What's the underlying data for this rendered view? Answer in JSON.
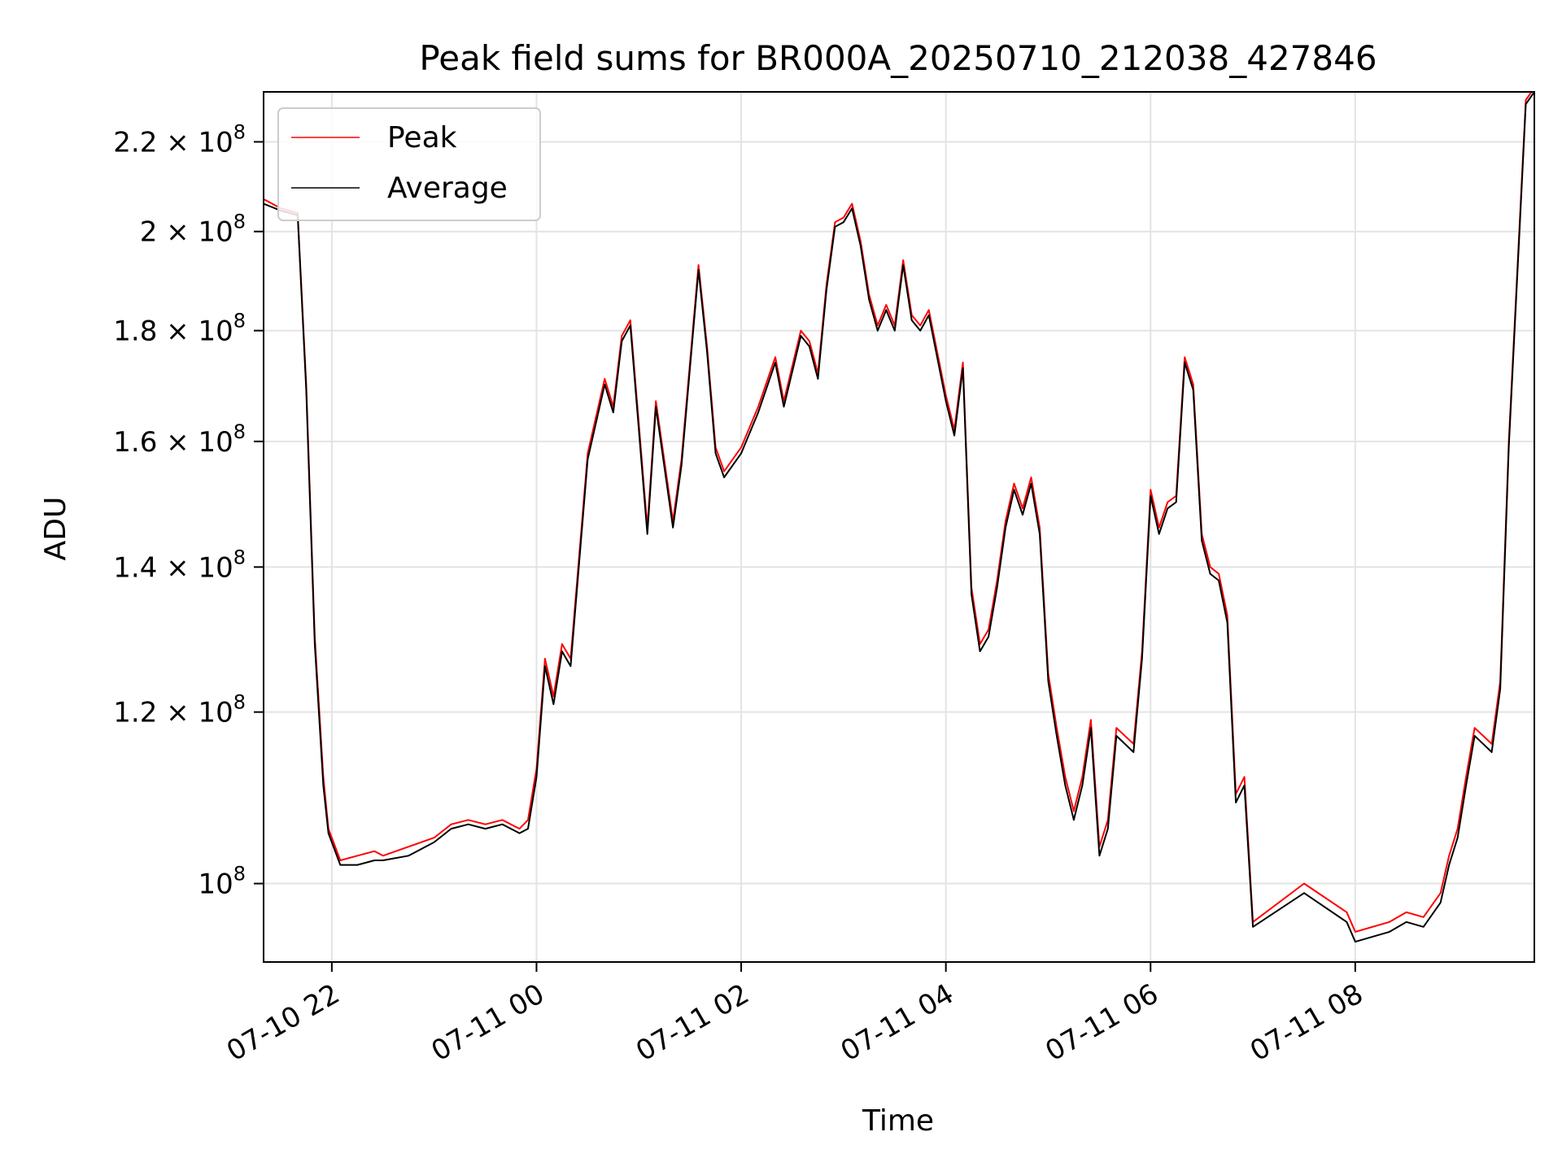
{
  "chart_data": {
    "type": "line",
    "title": "Peak field sums for BR000A_20250710_212038_427846",
    "xlabel": "Time",
    "ylabel": "ADU",
    "yscale": "log",
    "ylim": [
      92000000,
      232000000
    ],
    "xlim": [
      "2025-07-10 21:20",
      "2025-07-11 09:45"
    ],
    "grid": true,
    "legend_position": "upper-left",
    "x_ticks": [
      {
        "value": "2025-07-10 22:00",
        "label": "07-10 22"
      },
      {
        "value": "2025-07-11 00:00",
        "label": "07-11 00"
      },
      {
        "value": "2025-07-11 02:00",
        "label": "07-11 02"
      },
      {
        "value": "2025-07-11 04:00",
        "label": "07-11 04"
      },
      {
        "value": "2025-07-11 06:00",
        "label": "07-11 06"
      },
      {
        "value": "2025-07-11 08:00",
        "label": "07-11 08"
      }
    ],
    "y_ticks": [
      {
        "value": 100000000,
        "mantissa": "",
        "exponent": "8"
      },
      {
        "value": 120000000,
        "mantissa": "1.2",
        "exponent": "8"
      },
      {
        "value": 140000000,
        "mantissa": "1.4",
        "exponent": "8"
      },
      {
        "value": 160000000,
        "mantissa": "1.6",
        "exponent": "8"
      },
      {
        "value": 180000000,
        "mantissa": "1.8",
        "exponent": "8"
      },
      {
        "value": 200000000,
        "mantissa": "2",
        "exponent": "8"
      },
      {
        "value": 220000000,
        "mantissa": "2.2",
        "exponent": "8"
      }
    ],
    "series": [
      {
        "name": "Peak",
        "color": "#ff0000",
        "x": [
          "2025-07-10 21:20",
          "2025-07-10 21:30",
          "2025-07-10 21:35",
          "2025-07-10 21:40",
          "2025-07-10 21:45",
          "2025-07-10 21:50",
          "2025-07-10 21:55",
          "2025-07-10 21:58",
          "2025-07-10 22:05",
          "2025-07-10 22:15",
          "2025-07-10 22:25",
          "2025-07-10 22:30",
          "2025-07-10 22:45",
          "2025-07-10 23:00",
          "2025-07-10 23:10",
          "2025-07-10 23:20",
          "2025-07-10 23:30",
          "2025-07-10 23:40",
          "2025-07-10 23:50",
          "2025-07-10 23:55",
          "2025-07-11 00:00",
          "2025-07-11 00:05",
          "2025-07-11 00:10",
          "2025-07-11 00:15",
          "2025-07-11 00:20",
          "2025-07-11 00:30",
          "2025-07-11 00:40",
          "2025-07-11 00:45",
          "2025-07-11 00:50",
          "2025-07-11 00:55",
          "2025-07-11 01:05",
          "2025-07-11 01:10",
          "2025-07-11 01:20",
          "2025-07-11 01:25",
          "2025-07-11 01:35",
          "2025-07-11 01:40",
          "2025-07-11 01:45",
          "2025-07-11 01:50",
          "2025-07-11 02:00",
          "2025-07-11 02:10",
          "2025-07-11 02:20",
          "2025-07-11 02:25",
          "2025-07-11 02:35",
          "2025-07-11 02:40",
          "2025-07-11 02:45",
          "2025-07-11 02:50",
          "2025-07-11 02:55",
          "2025-07-11 03:00",
          "2025-07-11 03:05",
          "2025-07-11 03:10",
          "2025-07-11 03:15",
          "2025-07-11 03:20",
          "2025-07-11 03:25",
          "2025-07-11 03:30",
          "2025-07-11 03:35",
          "2025-07-11 03:40",
          "2025-07-11 03:45",
          "2025-07-11 03:50",
          "2025-07-11 04:00",
          "2025-07-11 04:05",
          "2025-07-11 04:10",
          "2025-07-11 04:15",
          "2025-07-11 04:20",
          "2025-07-11 04:25",
          "2025-07-11 04:30",
          "2025-07-11 04:35",
          "2025-07-11 04:40",
          "2025-07-11 04:45",
          "2025-07-11 04:50",
          "2025-07-11 04:55",
          "2025-07-11 05:00",
          "2025-07-11 05:05",
          "2025-07-11 05:10",
          "2025-07-11 05:15",
          "2025-07-11 05:20",
          "2025-07-11 05:25",
          "2025-07-11 05:30",
          "2025-07-11 05:35",
          "2025-07-11 05:40",
          "2025-07-11 05:50",
          "2025-07-11 05:55",
          "2025-07-11 06:00",
          "2025-07-11 06:05",
          "2025-07-11 06:10",
          "2025-07-11 06:15",
          "2025-07-11 06:20",
          "2025-07-11 06:25",
          "2025-07-11 06:30",
          "2025-07-11 06:35",
          "2025-07-11 06:40",
          "2025-07-11 06:45",
          "2025-07-11 06:50",
          "2025-07-11 06:55",
          "2025-07-11 07:00",
          "2025-07-11 07:30",
          "2025-07-11 07:55",
          "2025-07-11 08:00",
          "2025-07-11 08:20",
          "2025-07-11 08:30",
          "2025-07-11 08:40",
          "2025-07-11 08:50",
          "2025-07-11 08:55",
          "2025-07-11 09:00",
          "2025-07-11 09:05",
          "2025-07-11 09:10",
          "2025-07-11 09:15",
          "2025-07-11 09:20",
          "2025-07-11 09:25",
          "2025-07-11 09:30",
          "2025-07-11 09:40",
          "2025-07-11 09:45"
        ],
        "y": [
          207000000,
          205000000,
          204500000,
          204000000,
          170000000,
          130000000,
          112000000,
          106000000,
          102500000,
          103000000,
          103500000,
          103000000,
          104000000,
          105000000,
          106500000,
          107000000,
          106500000,
          107000000,
          106000000,
          107000000,
          113000000,
          127000000,
          122000000,
          129000000,
          127000000,
          158000000,
          171000000,
          166000000,
          179000000,
          182000000,
          146000000,
          167000000,
          147000000,
          157000000,
          193000000,
          177000000,
          159000000,
          155000000,
          159000000,
          166000000,
          175000000,
          167000000,
          180000000,
          178000000,
          172000000,
          189000000,
          202000000,
          203000000,
          206000000,
          198000000,
          187000000,
          181000000,
          185000000,
          181000000,
          194000000,
          183000000,
          181000000,
          184000000,
          168000000,
          162000000,
          174000000,
          137000000,
          129000000,
          131000000,
          138000000,
          147000000,
          153000000,
          149000000,
          154000000,
          146000000,
          125000000,
          118000000,
          112000000,
          108000000,
          112000000,
          119000000,
          104000000,
          107000000,
          118000000,
          116000000,
          128000000,
          152000000,
          146000000,
          150000000,
          151000000,
          175000000,
          170000000,
          145000000,
          140000000,
          139000000,
          133000000,
          110000000,
          112000000,
          96000000,
          100000000,
          97000000,
          95000000,
          96000000,
          97000000,
          96500000,
          99000000,
          103000000,
          106000000,
          112000000,
          118000000,
          117000000,
          116000000,
          124000000,
          160000000,
          230000000,
          233000000
        ]
      },
      {
        "name": "Average",
        "color": "#000000",
        "x": [
          "2025-07-10 21:20",
          "2025-07-10 21:30",
          "2025-07-10 21:35",
          "2025-07-10 21:40",
          "2025-07-10 21:45",
          "2025-07-10 21:50",
          "2025-07-10 21:55",
          "2025-07-10 21:58",
          "2025-07-10 22:05",
          "2025-07-10 22:15",
          "2025-07-10 22:25",
          "2025-07-10 22:30",
          "2025-07-10 22:45",
          "2025-07-10 23:00",
          "2025-07-10 23:10",
          "2025-07-10 23:20",
          "2025-07-10 23:30",
          "2025-07-10 23:40",
          "2025-07-10 23:50",
          "2025-07-10 23:55",
          "2025-07-11 00:00",
          "2025-07-11 00:05",
          "2025-07-11 00:10",
          "2025-07-11 00:15",
          "2025-07-11 00:20",
          "2025-07-11 00:30",
          "2025-07-11 00:40",
          "2025-07-11 00:45",
          "2025-07-11 00:50",
          "2025-07-11 00:55",
          "2025-07-11 01:05",
          "2025-07-11 01:10",
          "2025-07-11 01:20",
          "2025-07-11 01:25",
          "2025-07-11 01:35",
          "2025-07-11 01:40",
          "2025-07-11 01:45",
          "2025-07-11 01:50",
          "2025-07-11 02:00",
          "2025-07-11 02:10",
          "2025-07-11 02:20",
          "2025-07-11 02:25",
          "2025-07-11 02:35",
          "2025-07-11 02:40",
          "2025-07-11 02:45",
          "2025-07-11 02:50",
          "2025-07-11 02:55",
          "2025-07-11 03:00",
          "2025-07-11 03:05",
          "2025-07-11 03:10",
          "2025-07-11 03:15",
          "2025-07-11 03:20",
          "2025-07-11 03:25",
          "2025-07-11 03:30",
          "2025-07-11 03:35",
          "2025-07-11 03:40",
          "2025-07-11 03:45",
          "2025-07-11 03:50",
          "2025-07-11 04:00",
          "2025-07-11 04:05",
          "2025-07-11 04:10",
          "2025-07-11 04:15",
          "2025-07-11 04:20",
          "2025-07-11 04:25",
          "2025-07-11 04:30",
          "2025-07-11 04:35",
          "2025-07-11 04:40",
          "2025-07-11 04:45",
          "2025-07-11 04:50",
          "2025-07-11 04:55",
          "2025-07-11 05:00",
          "2025-07-11 05:05",
          "2025-07-11 05:10",
          "2025-07-11 05:15",
          "2025-07-11 05:20",
          "2025-07-11 05:25",
          "2025-07-11 05:30",
          "2025-07-11 05:35",
          "2025-07-11 05:40",
          "2025-07-11 05:50",
          "2025-07-11 05:55",
          "2025-07-11 06:00",
          "2025-07-11 06:05",
          "2025-07-11 06:10",
          "2025-07-11 06:15",
          "2025-07-11 06:20",
          "2025-07-11 06:25",
          "2025-07-11 06:30",
          "2025-07-11 06:35",
          "2025-07-11 06:40",
          "2025-07-11 06:45",
          "2025-07-11 06:50",
          "2025-07-11 06:55",
          "2025-07-11 07:00",
          "2025-07-11 07:30",
          "2025-07-11 07:55",
          "2025-07-11 08:00",
          "2025-07-11 08:20",
          "2025-07-11 08:30",
          "2025-07-11 08:40",
          "2025-07-11 08:50",
          "2025-07-11 08:55",
          "2025-07-11 09:00",
          "2025-07-11 09:05",
          "2025-07-11 09:10",
          "2025-07-11 09:15",
          "2025-07-11 09:20",
          "2025-07-11 09:25",
          "2025-07-11 09:30",
          "2025-07-11 09:40",
          "2025-07-11 09:45"
        ],
        "y": [
          206000000,
          204500000,
          204000000,
          203500000,
          169000000,
          129000000,
          111000000,
          105500000,
          102000000,
          102000000,
          102500000,
          102500000,
          103000000,
          104500000,
          106000000,
          106500000,
          106000000,
          106500000,
          105500000,
          106000000,
          112000000,
          126000000,
          121000000,
          128000000,
          126000000,
          157000000,
          170000000,
          165000000,
          178000000,
          181000000,
          145000000,
          166000000,
          146000000,
          156000000,
          192000000,
          176000000,
          158000000,
          154000000,
          158000000,
          165000000,
          174000000,
          166000000,
          179000000,
          177000000,
          171000000,
          188000000,
          201000000,
          202000000,
          205000000,
          197000000,
          186000000,
          180000000,
          184000000,
          180000000,
          193000000,
          182000000,
          180000000,
          183000000,
          167000000,
          161000000,
          173000000,
          136000000,
          128000000,
          130000000,
          137000000,
          146000000,
          152000000,
          148000000,
          153000000,
          145000000,
          124000000,
          117000000,
          111000000,
          107000000,
          111000000,
          118000000,
          103000000,
          106000000,
          117000000,
          115000000,
          127000000,
          151000000,
          145000000,
          149000000,
          150000000,
          174000000,
          169000000,
          144000000,
          139000000,
          138000000,
          132000000,
          109000000,
          111000000,
          95500000,
          99000000,
          96000000,
          94000000,
          95000000,
          96000000,
          95500000,
          98000000,
          102000000,
          105000000,
          111000000,
          117000000,
          116000000,
          115000000,
          123000000,
          159000000,
          229000000,
          232000000
        ]
      }
    ]
  }
}
